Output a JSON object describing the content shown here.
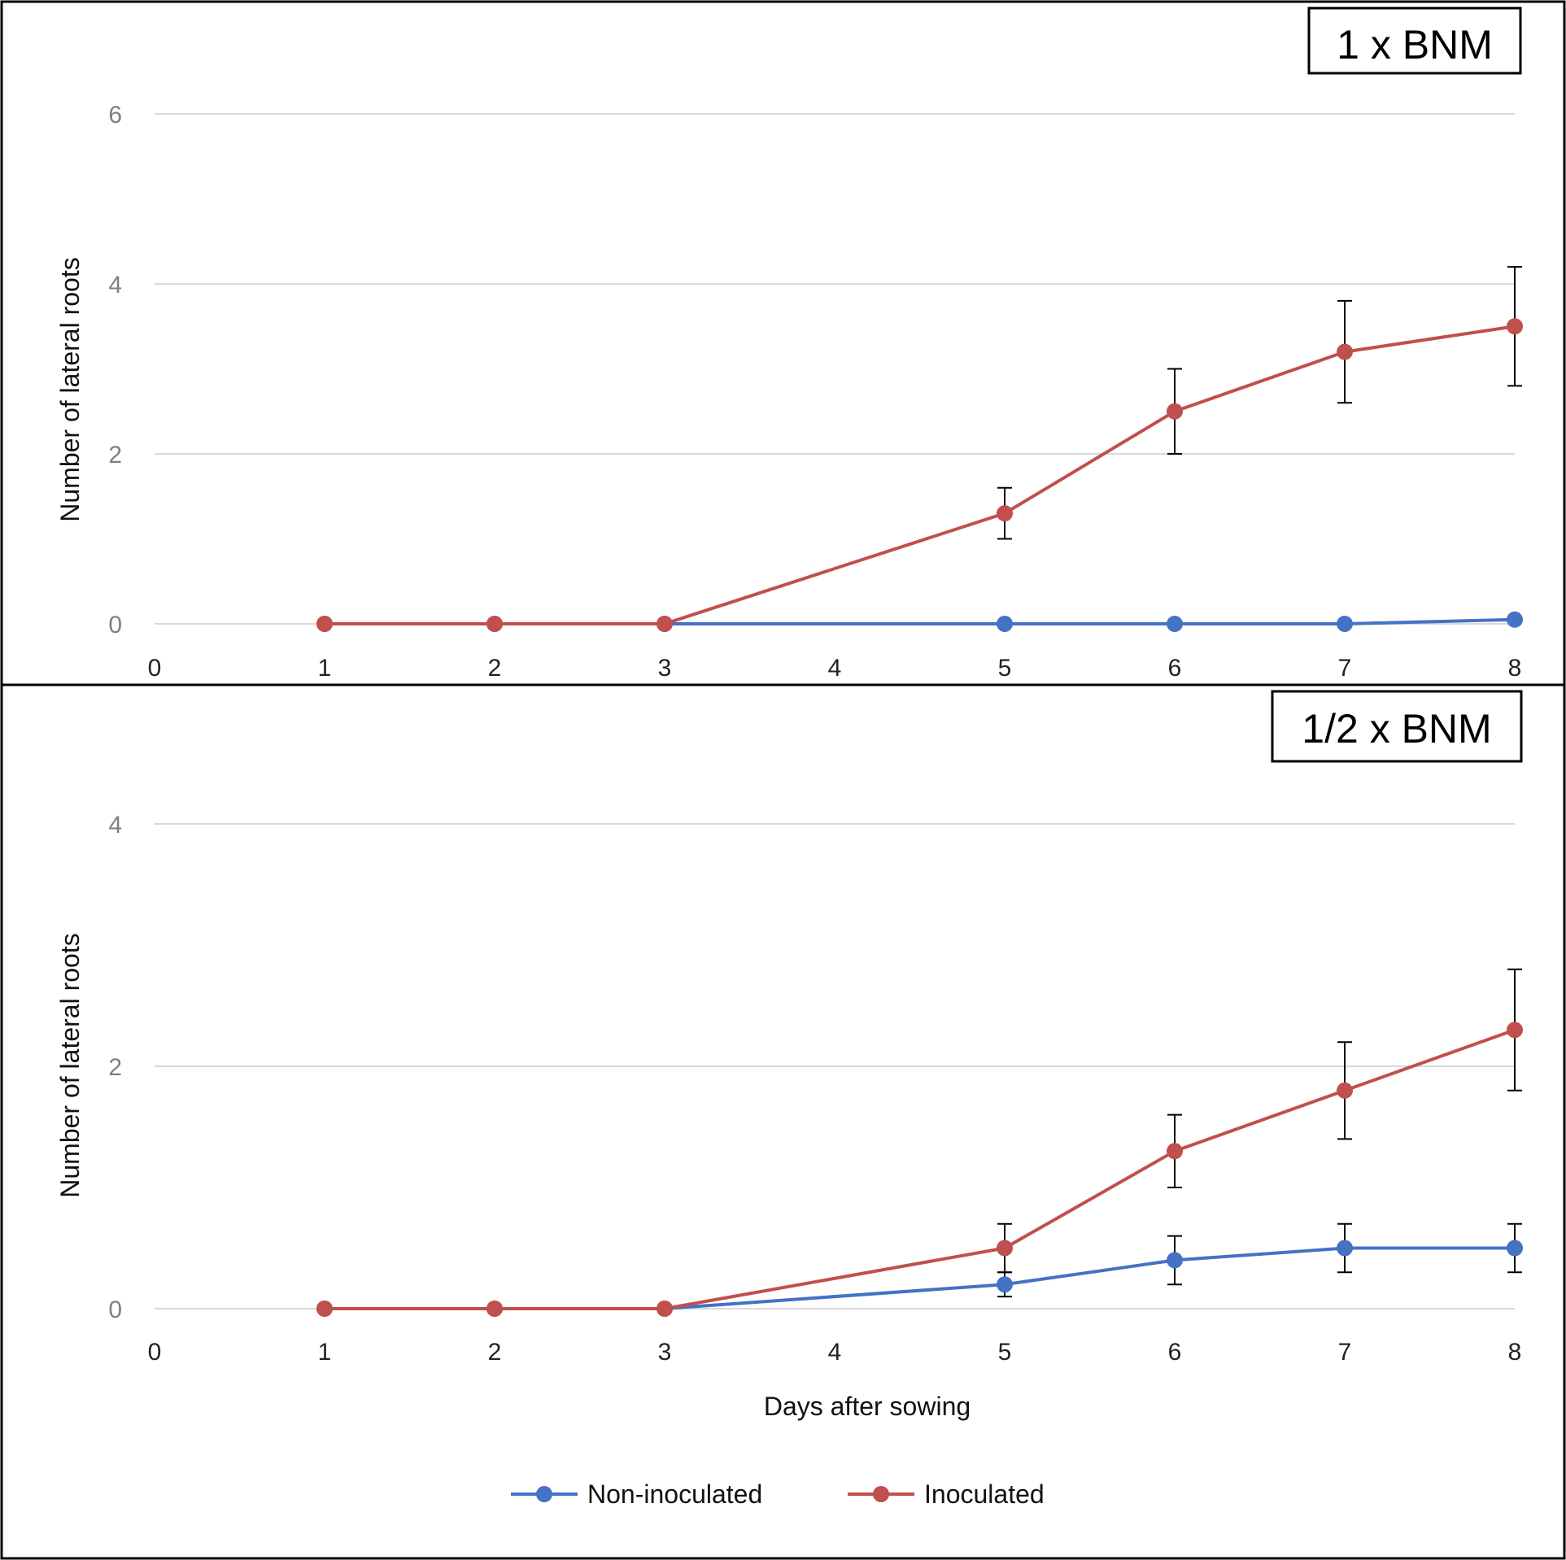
{
  "chart_data": [
    {
      "type": "line",
      "title": "1 x BNM",
      "xlabel": "",
      "ylabel": "Number  of lateral roots",
      "x_ticks": [
        "0",
        "1",
        "2",
        "3",
        "4",
        "5",
        "6",
        "7",
        "8"
      ],
      "y_ticks": [
        "0",
        "2",
        "4",
        "6"
      ],
      "xlim": [
        0,
        8
      ],
      "ylim": [
        0,
        6
      ],
      "x": [
        1,
        2,
        3,
        5,
        6,
        7,
        8
      ],
      "series": [
        {
          "name": "Non-inoculated",
          "color": "#4472C4",
          "marker_color": "#4472C4",
          "values": [
            0,
            0,
            0,
            0,
            0,
            0,
            0.05
          ],
          "errors": [
            null,
            null,
            null,
            null,
            null,
            null,
            null
          ]
        },
        {
          "name": "Inoculated",
          "color": "#C0504D",
          "marker_color": "#C0504D",
          "values": [
            0,
            0,
            0,
            1.3,
            2.5,
            3.2,
            3.5
          ],
          "errors": [
            null,
            null,
            null,
            0.3,
            0.5,
            0.6,
            0.7
          ]
        }
      ],
      "grid": true
    },
    {
      "type": "line",
      "title": "1/2 x BNM",
      "xlabel": "Days after sowing",
      "ylabel": "Number  of lateral roots",
      "x_ticks": [
        "0",
        "1",
        "2",
        "3",
        "4",
        "5",
        "6",
        "7",
        "8"
      ],
      "y_ticks": [
        "0",
        "2",
        "4"
      ],
      "xlim": [
        0,
        8
      ],
      "ylim": [
        0,
        4
      ],
      "x": [
        1,
        2,
        3,
        5,
        6,
        7,
        8
      ],
      "series": [
        {
          "name": "Non-inoculated",
          "color": "#4472C4",
          "marker_color": "#4472C4",
          "values": [
            0,
            0,
            0,
            0.2,
            0.4,
            0.5,
            0.5
          ],
          "errors": [
            null,
            null,
            null,
            0.1,
            0.2,
            0.2,
            0.2
          ]
        },
        {
          "name": "Inoculated",
          "color": "#C0504D",
          "marker_color": "#C0504D",
          "values": [
            0,
            0,
            0,
            0.5,
            1.3,
            1.8,
            2.3
          ],
          "errors": [
            null,
            null,
            null,
            0.2,
            0.3,
            0.4,
            0.5
          ]
        }
      ],
      "grid": true
    }
  ],
  "legend": {
    "position": "bottom-center",
    "entries": [
      {
        "label": "Non-inoculated",
        "color": "#4472C4"
      },
      {
        "label": "Inoculated",
        "color": "#C0504D"
      }
    ]
  }
}
